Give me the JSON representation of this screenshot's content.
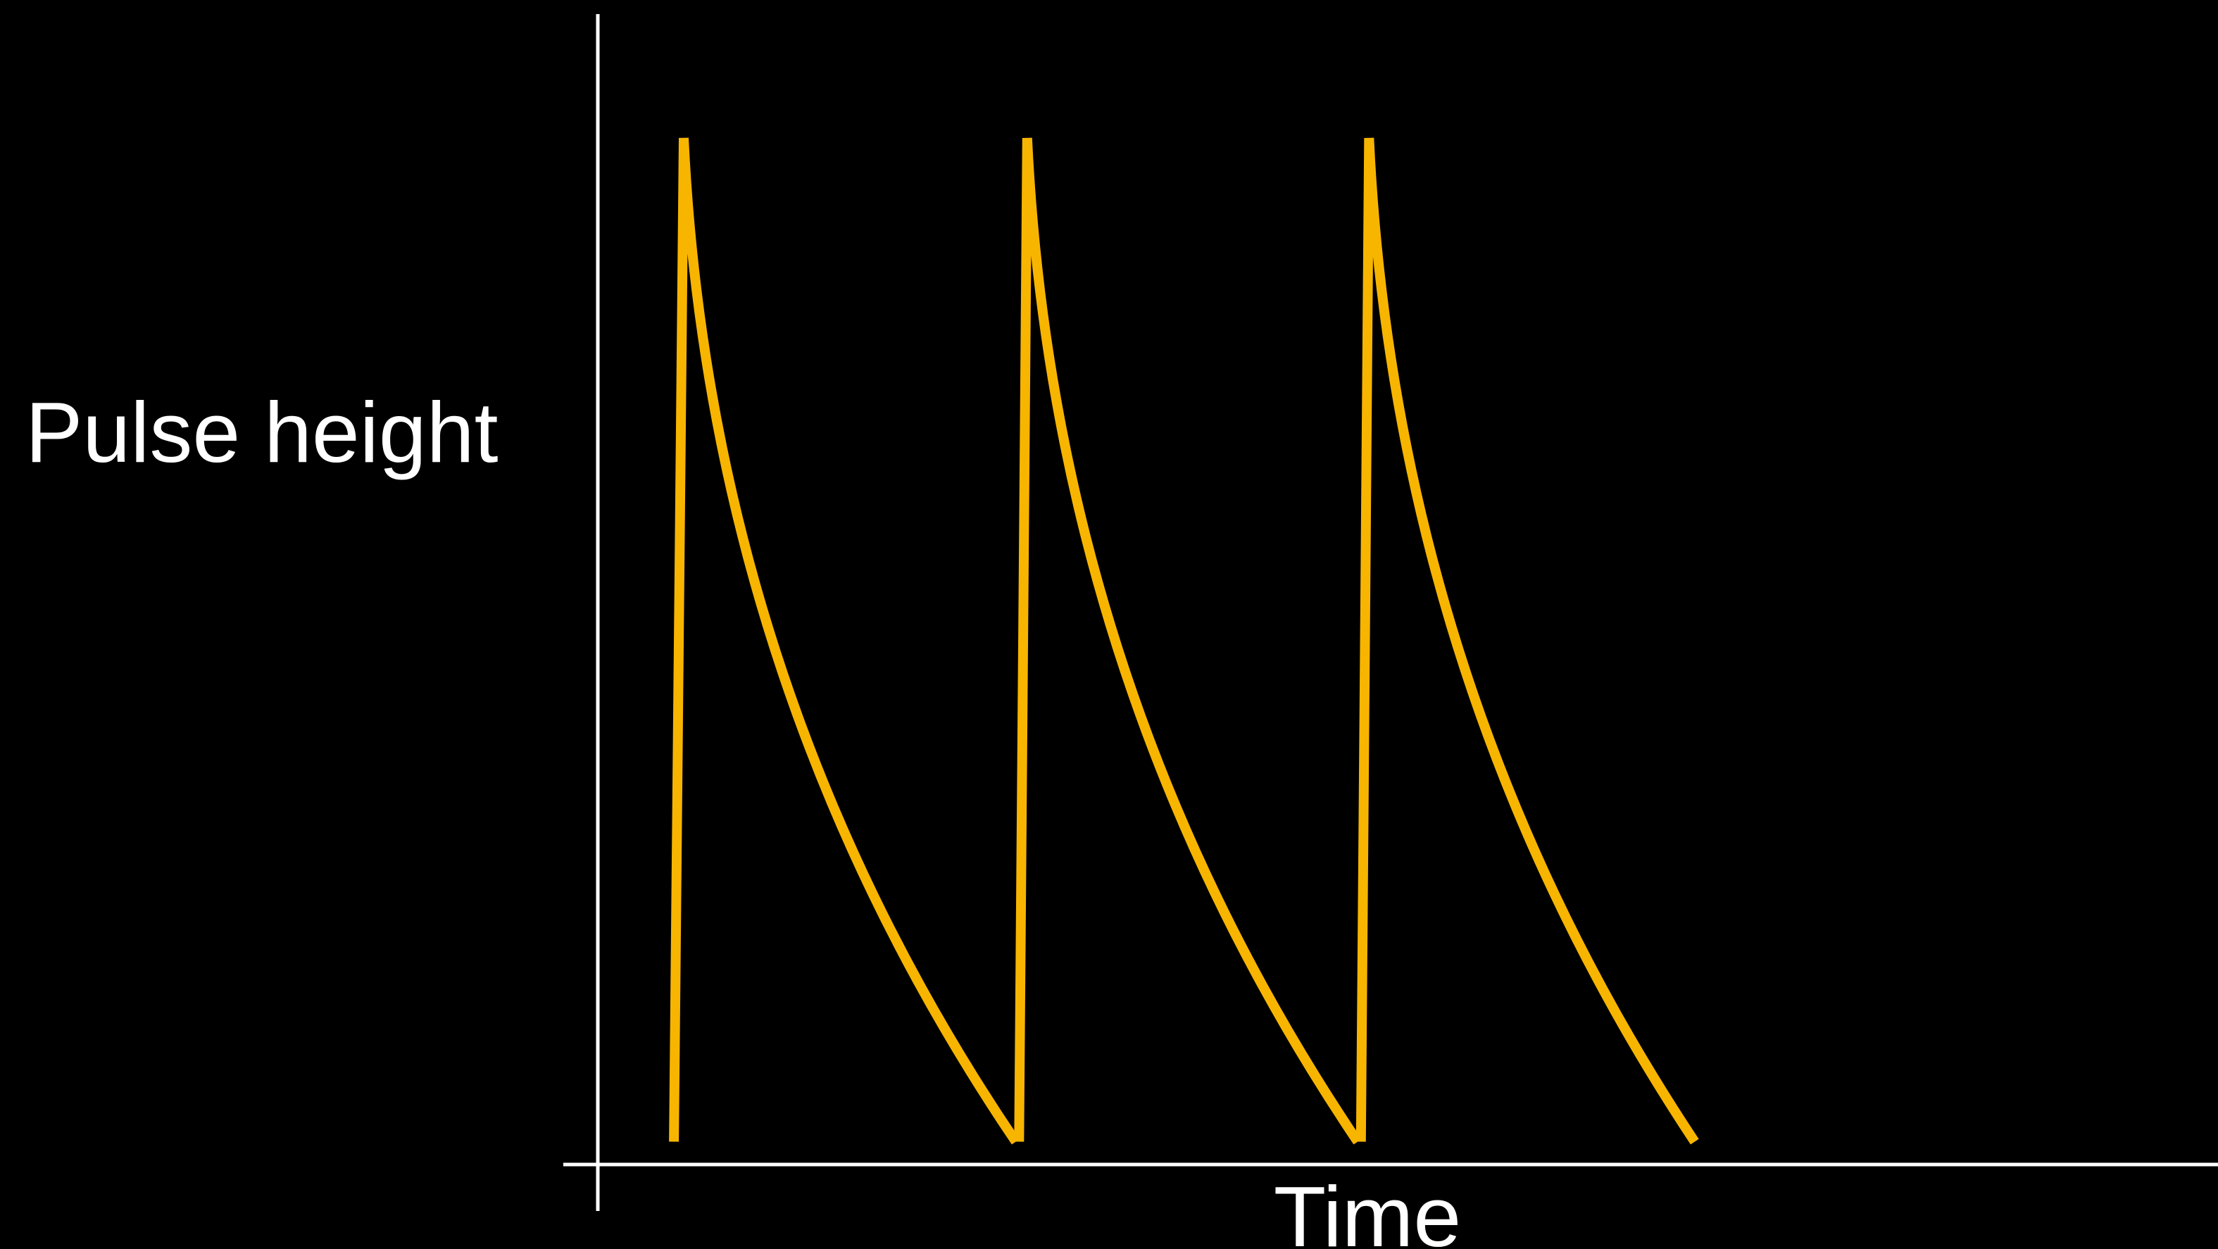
{
  "chart_data": {
    "type": "line",
    "title": "",
    "xlabel": "Time",
    "ylabel": "Pulse height",
    "xlim": [
      0,
      1
    ],
    "ylim": [
      0,
      1
    ],
    "grid": false,
    "legend": "none",
    "axis_ticks": false,
    "series": [
      {
        "description_free": true,
        "color": "#F7B500",
        "pulses": [
          {
            "rise_start": 0.047,
            "peak": 0.053,
            "decay_end": 0.258,
            "decay_end_y": 0.01
          },
          {
            "rise_start": 0.26,
            "peak": 0.265,
            "decay_end": 0.469,
            "decay_end_y": 0.01
          },
          {
            "rise_start": 0.471,
            "peak": 0.476,
            "decay_end": 0.677,
            "decay_end_y": 0.01
          }
        ],
        "peak_y": 1.0,
        "start_y": 0.01
      }
    ]
  },
  "colors": {
    "background": "#000000",
    "axes": "#FFFFFF",
    "signal": "#F7B500",
    "text": "#FFFFFF"
  }
}
